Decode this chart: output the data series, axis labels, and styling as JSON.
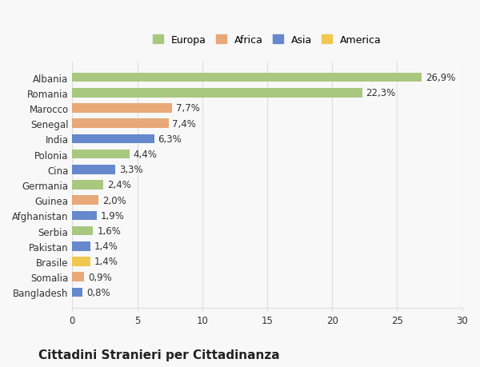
{
  "countries": [
    "Albania",
    "Romania",
    "Marocco",
    "Senegal",
    "India",
    "Polonia",
    "Cina",
    "Germania",
    "Guinea",
    "Afghanistan",
    "Serbia",
    "Pakistan",
    "Brasile",
    "Somalia",
    "Bangladesh"
  ],
  "values": [
    26.9,
    22.3,
    7.7,
    7.4,
    6.3,
    4.4,
    3.3,
    2.4,
    2.0,
    1.9,
    1.6,
    1.4,
    1.4,
    0.9,
    0.8
  ],
  "labels": [
    "26,9%",
    "22,3%",
    "7,7%",
    "7,4%",
    "6,3%",
    "4,4%",
    "3,3%",
    "2,4%",
    "2,0%",
    "1,9%",
    "1,6%",
    "1,4%",
    "1,4%",
    "0,9%",
    "0,8%"
  ],
  "continents": [
    "Europa",
    "Europa",
    "Africa",
    "Africa",
    "Asia",
    "Europa",
    "Asia",
    "Europa",
    "Africa",
    "Asia",
    "Europa",
    "Asia",
    "America",
    "Africa",
    "Asia"
  ],
  "continent_colors": {
    "Europa": "#a8c880",
    "Africa": "#e8a878",
    "Asia": "#6688cc",
    "America": "#f0c850"
  },
  "legend_order": [
    "Europa",
    "Africa",
    "Asia",
    "America"
  ],
  "title": "Cittadini Stranieri per Cittadinanza",
  "xlim": [
    0,
    30
  ],
  "xticks": [
    0,
    5,
    10,
    15,
    20,
    25,
    30
  ],
  "background_color": "#f8f8f8",
  "grid_color": "#dddddd",
  "title_fontsize": 11,
  "subtitle_fontsize": 8,
  "label_fontsize": 8.5,
  "tick_fontsize": 8.5,
  "legend_fontsize": 9
}
